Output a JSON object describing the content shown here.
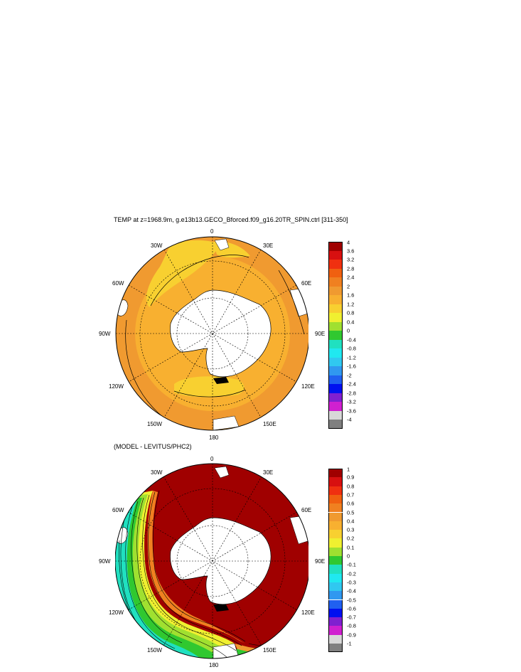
{
  "top_panel": {
    "title": "TEMP at z=1968.9m, g.e13b13.GECO_Bforced.f09_g16.20TR_SPIN.ctrl [311-350]",
    "lon_labels": {
      "n0": "0",
      "e30": "30E",
      "e60": "60E",
      "e90": "90E",
      "e120": "120E",
      "e150": "150E",
      "s180": "180",
      "w150": "150W",
      "w120": "120W",
      "w90": "90W",
      "w60": "60W",
      "w30": "30W"
    },
    "colorbar": {
      "labels": [
        "4",
        "3.6",
        "3.2",
        "2.8",
        "2.4",
        "2",
        "1.6",
        "1.2",
        "0.8",
        "0.4",
        "0",
        "-0.4",
        "-0.8",
        "-1.2",
        "-1.6",
        "-2",
        "-2.4",
        "-2.8",
        "-3.2",
        "-3.6",
        "-4"
      ],
      "colors": [
        "#a00000",
        "#d81010",
        "#f03010",
        "#f06010",
        "#f08020",
        "#f09a30",
        "#f8b030",
        "#f8d030",
        "#f0f030",
        "#a0e030",
        "#30c830",
        "#20e0c0",
        "#20e8f0",
        "#30c8f0",
        "#3098f0",
        "#2060f0",
        "#0010f0",
        "#8020d0",
        "#d020d0",
        "#d8d8d8",
        "#808080"
      ]
    }
  },
  "bottom_panel": {
    "title": "(MODEL - LEVITUS/PHC2)",
    "lon_labels": {
      "n0": "0",
      "e30": "30E",
      "e60": "60E",
      "e90": "90E",
      "e120": "120E",
      "e150": "150E",
      "s180": "180",
      "w150": "150W",
      "w120": "120W",
      "w90": "90W",
      "w60": "60W",
      "w30": "30W"
    },
    "colorbar": {
      "labels": [
        "1",
        "0.9",
        "0.8",
        "0.7",
        "0.6",
        "0.5",
        "0.4",
        "0.3",
        "0.2",
        "0.1",
        "0",
        "-0.1",
        "-0.2",
        "-0.3",
        "-0.4",
        "-0.5",
        "-0.6",
        "-0.7",
        "-0.8",
        "-0.9",
        "-1"
      ],
      "colors": [
        "#a00000",
        "#d81010",
        "#f03010",
        "#f06010",
        "#f08020",
        "#f09a30",
        "#f8b030",
        "#f8d030",
        "#f0f030",
        "#a0e030",
        "#30c830",
        "#20e0c0",
        "#20e8f0",
        "#30c8f0",
        "#3098f0",
        "#2060f0",
        "#0010f0",
        "#8020d0",
        "#d020d0",
        "#d8d8d8",
        "#808080"
      ]
    }
  }
}
